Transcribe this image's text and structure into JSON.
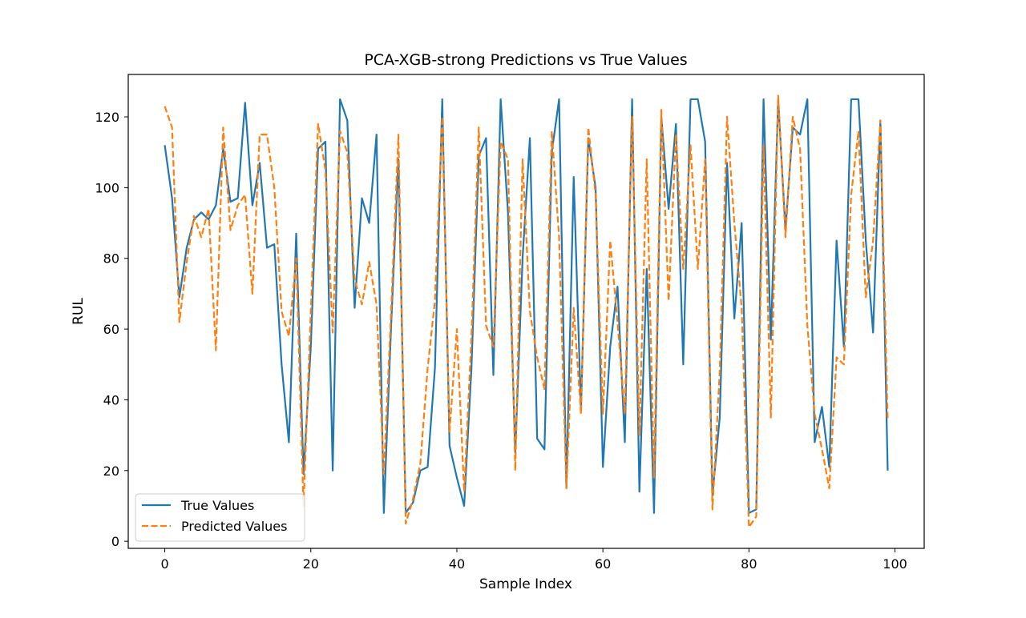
{
  "chart_data": {
    "type": "line",
    "title": "PCA-XGB-strong Predictions vs True Values",
    "xlabel": "Sample Index",
    "ylabel": "RUL",
    "xlim": [
      -5,
      104
    ],
    "ylim": [
      -2,
      132
    ],
    "x_ticks": [
      0,
      20,
      40,
      60,
      80,
      100
    ],
    "y_ticks": [
      0,
      20,
      40,
      60,
      80,
      100,
      120
    ],
    "grid": false,
    "legend_position": "lower left",
    "x": [
      0,
      1,
      2,
      3,
      4,
      5,
      6,
      7,
      8,
      9,
      10,
      11,
      12,
      13,
      14,
      15,
      16,
      17,
      18,
      19,
      20,
      21,
      22,
      23,
      24,
      25,
      26,
      27,
      28,
      29,
      30,
      31,
      32,
      33,
      34,
      35,
      36,
      37,
      38,
      39,
      40,
      41,
      42,
      43,
      44,
      45,
      46,
      47,
      48,
      49,
      50,
      51,
      52,
      53,
      54,
      55,
      56,
      57,
      58,
      59,
      60,
      61,
      62,
      63,
      64,
      65,
      66,
      67,
      68,
      69,
      70,
      71,
      72,
      73,
      74,
      75,
      76,
      77,
      78,
      79,
      80,
      81,
      82,
      83,
      84,
      85,
      86,
      87,
      88,
      89,
      90,
      91,
      92,
      93,
      94,
      95,
      96,
      97,
      98,
      99
    ],
    "series": [
      {
        "name": "True Values",
        "color": "#1f77b4",
        "style": "solid",
        "values": [
          112,
          97,
          69,
          83,
          91,
          93,
          91,
          95,
          111,
          96,
          97,
          124,
          95,
          107,
          83,
          84,
          50,
          28,
          87,
          19,
          55,
          111,
          113,
          20,
          125,
          119,
          66,
          97,
          90,
          115,
          8,
          61,
          108,
          8,
          11,
          20,
          21,
          49,
          125,
          27,
          18,
          10,
          49,
          109,
          114,
          47,
          125,
          93,
          25,
          80,
          114,
          29,
          26,
          110,
          125,
          15,
          103,
          37,
          114,
          100,
          21,
          55,
          72,
          28,
          125,
          14,
          77,
          8,
          120,
          94,
          118,
          50,
          125,
          125,
          113,
          13,
          35,
          107,
          63,
          90,
          8,
          9,
          125,
          57,
          125,
          88,
          117,
          115,
          125,
          28,
          38,
          21,
          85,
          55,
          125,
          125,
          85,
          59,
          119,
          20
        ]
      },
      {
        "name": "Predicted Values",
        "color": "#ff7f0e",
        "style": "dashed",
        "values": [
          123,
          117,
          62,
          79,
          92,
          86,
          94,
          54,
          117,
          88,
          95,
          98,
          70,
          115,
          115,
          100,
          65,
          58,
          80,
          10,
          65,
          118,
          105,
          59,
          116,
          110,
          74,
          67,
          79,
          67,
          19,
          65,
          115,
          5,
          12,
          22,
          49,
          68,
          120,
          31,
          60,
          14,
          58,
          117,
          61,
          55,
          113,
          108,
          20,
          108,
          65,
          52,
          43,
          116,
          86,
          15,
          66,
          36,
          117,
          98,
          36,
          85,
          62,
          36,
          120,
          30,
          108,
          18,
          122,
          68,
          115,
          77,
          112,
          77,
          108,
          9,
          48,
          120,
          90,
          66,
          4,
          7,
          112,
          35,
          126,
          86,
          120,
          111,
          61,
          36,
          26,
          15,
          52,
          50,
          98,
          116,
          69,
          85,
          119,
          34
        ]
      }
    ]
  }
}
